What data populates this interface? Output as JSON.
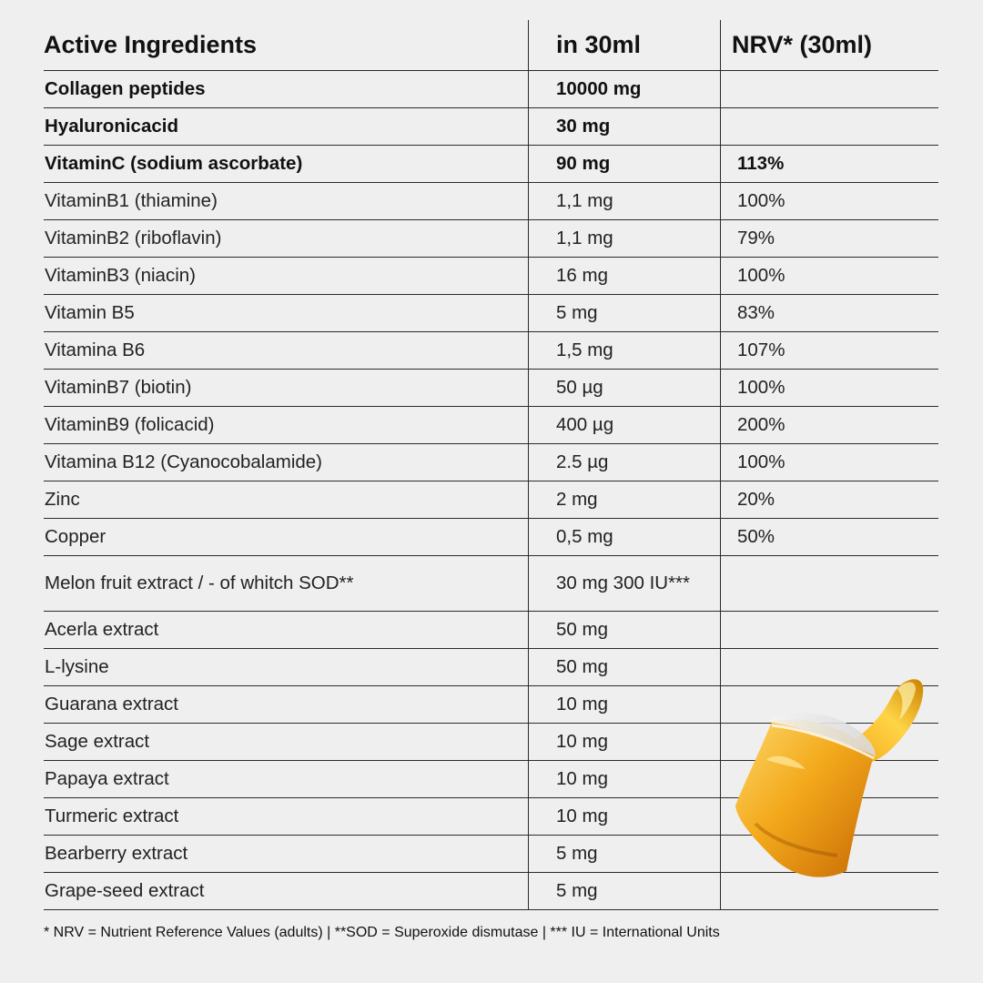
{
  "table": {
    "headers": [
      "Active Ingredients",
      "in 30ml",
      "NRV* (30ml)"
    ],
    "rows": [
      {
        "name": "Collagen peptides",
        "amount": "10000 mg",
        "nrv": "",
        "bold": true
      },
      {
        "name": "Hyaluronicacid",
        "amount": "30 mg",
        "nrv": "",
        "bold": true
      },
      {
        "name": "VitaminC (sodium ascorbate)",
        "amount": "90 mg",
        "nrv": "113%",
        "bold": true
      },
      {
        "name": "VitaminB1 (thiamine)",
        "amount": "1,1 mg",
        "nrv": "100%"
      },
      {
        "name": "VitaminB2 (riboflavin)",
        "amount": "1,1 mg",
        "nrv": "79%"
      },
      {
        "name": "VitaminB3 (niacin)",
        "amount": "16 mg",
        "nrv": "100%"
      },
      {
        "name": "Vitamin B5",
        "amount": "5 mg",
        "nrv": "83%"
      },
      {
        "name": "Vitamina B6",
        "amount": "1,5 mg",
        "nrv": "107%"
      },
      {
        "name": "VitaminB7 (biotin)",
        "amount": "50 µg",
        "nrv": "100%"
      },
      {
        "name": "VitaminB9 (folicacid)",
        "amount": "400 µg",
        "nrv": "200%"
      },
      {
        "name": "Vitamina B12 (Cyanocobalamide)",
        "amount": "2.5 µg",
        "nrv": "100%"
      },
      {
        "name": "Zinc",
        "amount": "2 mg",
        "nrv": "20%"
      },
      {
        "name": "Copper",
        "amount": "0,5 mg",
        "nrv": "50%"
      },
      {
        "name": "Melon fruit extract / - of whitch SOD**",
        "amount": "30 mg 300 IU***",
        "nrv": "",
        "tall": true
      },
      {
        "name": "Acerla extract",
        "amount": "50 mg",
        "nrv": ""
      },
      {
        "name": "L-lysine",
        "amount": "50 mg",
        "nrv": ""
      },
      {
        "name": "Guarana extract",
        "amount": "10 mg",
        "nrv": ""
      },
      {
        "name": "Sage extract",
        "amount": "10 mg",
        "nrv": ""
      },
      {
        "name": "Papaya extract",
        "amount": "10 mg",
        "nrv": ""
      },
      {
        "name": "Turmeric extract",
        "amount": "10 mg",
        "nrv": ""
      },
      {
        "name": "Bearberry extract",
        "amount": "5 mg",
        "nrv": ""
      },
      {
        "name": "Grape-seed extract",
        "amount": "5 mg",
        "nrv": ""
      }
    ]
  },
  "footnote": "* NRV = Nutrient Reference Values (adults) | **SOD = Superoxide dismutase | *** IU = International Units",
  "colors": {
    "background": "#efefef",
    "text": "#1b1b1b",
    "rule": "#2b2b2b",
    "liquid": "#f2a514"
  },
  "illustration": {
    "icon": "supplement-shot-cup-icon"
  }
}
